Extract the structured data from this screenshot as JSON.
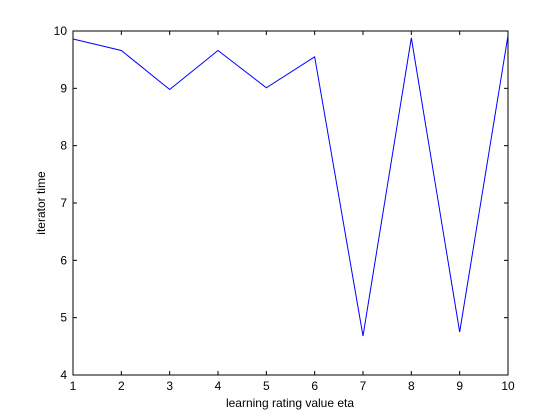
{
  "chart_data": {
    "type": "line",
    "title": "",
    "xlabel": "learning rating value eta",
    "ylabel": "iterator time",
    "xlim": [
      1,
      10
    ],
    "ylim": [
      4,
      10
    ],
    "xticks": [
      1,
      2,
      3,
      4,
      5,
      6,
      7,
      8,
      9,
      10
    ],
    "yticks": [
      4,
      5,
      6,
      7,
      8,
      9,
      10
    ],
    "grid": false,
    "series": [
      {
        "color": "#0000ff",
        "x": [
          1,
          2,
          3,
          4,
          5,
          6,
          7,
          8,
          9,
          10
        ],
        "y": [
          9.86,
          9.66,
          8.98,
          9.66,
          9.01,
          9.55,
          4.68,
          9.88,
          4.75,
          9.92
        ]
      }
    ]
  }
}
